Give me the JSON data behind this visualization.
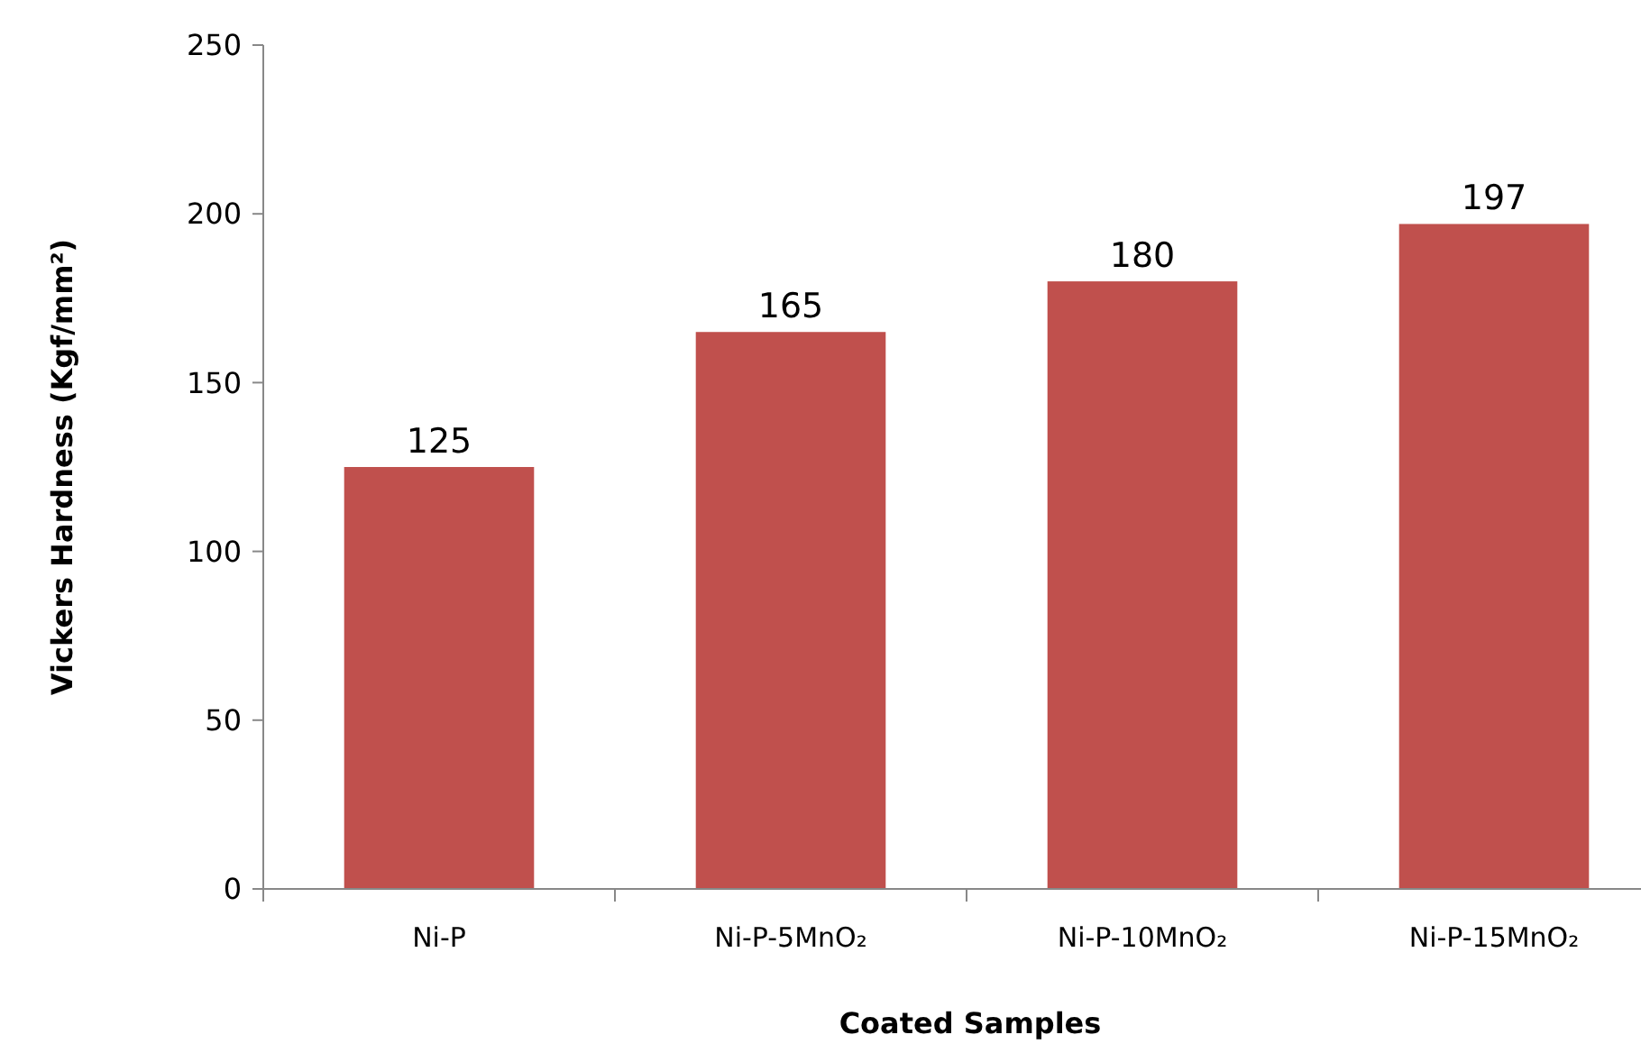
{
  "chart_data": {
    "type": "bar",
    "xlabel": "Coated Samples",
    "ylabel": "Vickers Hardness (Kgf/mm²)",
    "categories": [
      "Ni-P",
      "Ni-P-5MnO₂",
      "Ni-P-10MnO₂",
      "Ni-P-15MnO₂"
    ],
    "values": [
      125,
      165,
      180,
      197
    ],
    "color": "#c0504d",
    "ylim": [
      0,
      250
    ],
    "yticks": [
      0,
      50,
      100,
      150,
      200,
      250
    ],
    "data_labels": true
  }
}
